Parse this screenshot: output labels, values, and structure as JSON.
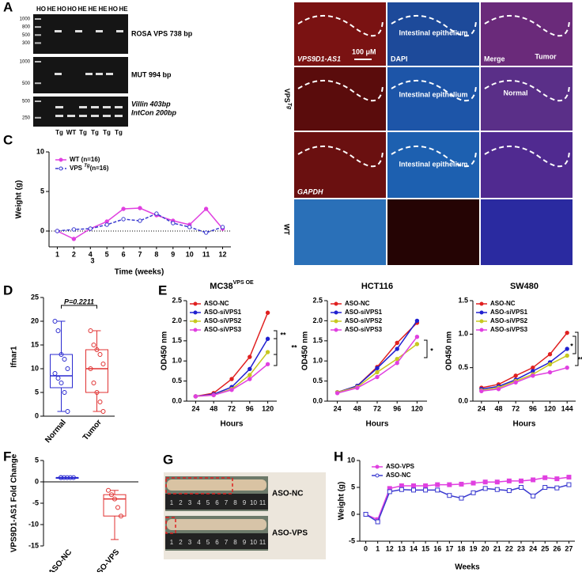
{
  "figure": {
    "A": {
      "label": "A",
      "lanes_top": [
        "HO",
        "HE",
        "HO",
        "HO",
        "HE",
        "HE",
        "HE",
        "HO",
        "HE"
      ],
      "gels": [
        {
          "ladder": [
            "1000",
            "800",
            "500",
            "300"
          ],
          "labels": [
            "ROSA VPS 738 bp"
          ]
        },
        {
          "ladder": [
            "1000",
            "500"
          ],
          "labels": [
            "MUT 994 bp"
          ]
        },
        {
          "ladder": [
            "500",
            "250"
          ],
          "labels": [
            "Villin 403bp",
            "IntCon 200bp"
          ]
        }
      ],
      "lanes_bottom": [
        "Tg",
        "WT",
        "Tg",
        "Tg",
        "Tg",
        "Tg"
      ]
    },
    "B": {
      "label": "B",
      "texts": [
        "VPS9D1-AS1",
        "100 μM",
        "DAPI",
        "Intestinal epithelium",
        "Merge",
        "Tumor",
        "Intestinal epithelium",
        "Normal",
        "GAPDH",
        "Intestinal epithelium"
      ],
      "row_group": "VPS",
      "row_group_sup": "Tg",
      "row_wt": "WT"
    },
    "G": {
      "label": "G",
      "rows": [
        "ASO-NC",
        "ASO-VPS"
      ],
      "ruler": [
        "1",
        "2",
        "3",
        "4",
        "5",
        "6",
        "7",
        "8",
        "9",
        "10",
        "11"
      ]
    }
  },
  "chart_data": [
    {
      "type": "line",
      "panel_label": "C",
      "xlabel": "Time (weeks)",
      "ylabel": "Weight (g)",
      "categories": [
        "1",
        "2",
        "4",
        "5",
        "6",
        "7",
        "8",
        "9",
        "10",
        "11",
        "12"
      ],
      "annotations": [
        "3"
      ],
      "ylim": [
        -2,
        10
      ],
      "yticks": [
        0,
        5,
        10
      ],
      "zero_line": true,
      "series": [
        {
          "name": "WT (n=16)",
          "color": "#e040e0",
          "marker": "circle",
          "values": [
            0,
            -1,
            0.3,
            1.2,
            2.8,
            2.9,
            2.0,
            1.3,
            0.8,
            2.8,
            0.3
          ]
        },
        {
          "name": "VPS ",
          "name_superscript": "Tg",
          "name_suffix": "(n=16)",
          "color": "#3a3ad0",
          "marker": "circle",
          "dash": true,
          "open": true,
          "values": [
            0,
            0.2,
            0.3,
            0.8,
            1.5,
            1.3,
            2.2,
            1.0,
            0.5,
            -0.2,
            0.5
          ]
        }
      ]
    },
    {
      "type": "box",
      "panel_label": "D",
      "ylabel": "Ifnar1",
      "categories": [
        "Normal",
        "Tumor"
      ],
      "colors": [
        "#2a2ad0",
        "#e03030"
      ],
      "ylim": [
        0,
        25
      ],
      "yticks": [
        0,
        5,
        10,
        15,
        20,
        25
      ],
      "annotations": [
        "P=0.2211"
      ],
      "boxes": [
        {
          "min": 1,
          "q1": 6,
          "median": 8.5,
          "q3": 13,
          "max": 20,
          "points": [
            20,
            18,
            13,
            12,
            10,
            9,
            8,
            7,
            5,
            1
          ]
        },
        {
          "min": 1,
          "q1": 5,
          "median": 10,
          "q3": 14,
          "max": 18,
          "points": [
            18,
            15,
            14,
            13,
            11,
            10,
            7,
            5,
            3,
            1
          ]
        }
      ]
    },
    {
      "type": "line",
      "panel_label": "E",
      "title": "MC38",
      "title_superscript": "VPS OE",
      "xlabel": "Hours",
      "ylabel": "OD450 nm",
      "categories": [
        "24",
        "48",
        "72",
        "96",
        "120"
      ],
      "ylim": [
        0,
        2.5
      ],
      "yticks": [
        {
          "value": 0,
          "label": "0.0"
        },
        0.5,
        {
          "value": 1,
          "label": "1.0"
        },
        1.5,
        {
          "value": 2,
          "label": "2.0"
        },
        2.5
      ],
      "annotations": [
        "**",
        "**"
      ],
      "series": [
        {
          "name": "ASO-NC",
          "color": "#e02020",
          "marker": "circle",
          "values": [
            0.12,
            0.2,
            0.55,
            1.1,
            2.2
          ]
        },
        {
          "name": "ASO-siVPS1",
          "color": "#2020d0",
          "marker": "circle",
          "values": [
            0.12,
            0.17,
            0.35,
            0.8,
            1.55
          ]
        },
        {
          "name": "ASO-siVPS2",
          "color": "#c8c820",
          "marker": "circle",
          "values": [
            0.12,
            0.15,
            0.3,
            0.65,
            1.22
          ]
        },
        {
          "name": "ASO-siVPS3",
          "color": "#e040e0",
          "marker": "circle",
          "values": [
            0.12,
            0.15,
            0.28,
            0.55,
            0.92
          ]
        }
      ]
    },
    {
      "type": "line",
      "title": "HCT116",
      "xlabel": "Hours",
      "ylabel": "OD450 nm",
      "categories": [
        "24",
        "48",
        "72",
        "96",
        "120"
      ],
      "ylim": [
        0,
        2.5
      ],
      "yticks": [
        {
          "value": 0,
          "label": "0.0"
        },
        0.5,
        {
          "value": 1,
          "label": "1.0"
        },
        1.5,
        {
          "value": 2,
          "label": "2.0"
        },
        2.5
      ],
      "annotations": [
        "*"
      ],
      "series": [
        {
          "name": "ASO-NC",
          "color": "#e02020",
          "marker": "circle",
          "values": [
            0.22,
            0.38,
            0.85,
            1.45,
            1.95
          ]
        },
        {
          "name": "ASO-siVPS1",
          "color": "#2020d0",
          "marker": "circle",
          "values": [
            0.22,
            0.38,
            0.82,
            1.3,
            2.0
          ]
        },
        {
          "name": "ASO-siVPS2",
          "color": "#c8c820",
          "marker": "circle",
          "values": [
            0.22,
            0.35,
            0.72,
            1.05,
            1.42
          ]
        },
        {
          "name": "ASO-siVPS3",
          "color": "#e040e0",
          "marker": "circle",
          "values": [
            0.2,
            0.33,
            0.6,
            0.95,
            1.6
          ]
        }
      ]
    },
    {
      "type": "line",
      "title": "SW480",
      "xlabel": "Hours",
      "ylabel": "OD450 nm",
      "categories": [
        "24",
        "48",
        "72",
        "96",
        "120",
        "144"
      ],
      "ylim": [
        0,
        1.5
      ],
      "yticks": [
        {
          "value": 0,
          "label": "0.0"
        },
        0.5,
        {
          "value": 1,
          "label": "1.0"
        },
        1.5
      ],
      "annotations": [
        "*",
        "**"
      ],
      "series": [
        {
          "name": "ASO-NC",
          "color": "#e02020",
          "marker": "circle",
          "values": [
            0.2,
            0.25,
            0.38,
            0.5,
            0.7,
            1.02
          ]
        },
        {
          "name": "ASO-siVPS1",
          "color": "#2020d0",
          "marker": "circle",
          "values": [
            0.18,
            0.22,
            0.32,
            0.45,
            0.58,
            0.78
          ]
        },
        {
          "name": "ASO-siVPS2",
          "color": "#c8c820",
          "marker": "circle",
          "values": [
            0.16,
            0.2,
            0.3,
            0.4,
            0.55,
            0.68
          ]
        },
        {
          "name": "ASO-siVPS3",
          "color": "#e040e0",
          "marker": "circle",
          "values": [
            0.15,
            0.18,
            0.28,
            0.38,
            0.43,
            0.5
          ]
        }
      ]
    },
    {
      "type": "box",
      "panel_label": "F",
      "ylabel": "VPS9D1-AS1 Fold Change",
      "categories": [
        "ASO-NC",
        "ASO-VPS"
      ],
      "colors": [
        "#2a2ad0",
        "#e03030"
      ],
      "ylim": [
        -15,
        5
      ],
      "yticks": [
        -15,
        -10,
        -5,
        0,
        5
      ],
      "zero_line": true,
      "boxes": [
        {
          "min": 1,
          "q1": 1,
          "median": 1,
          "q3": 1,
          "max": 1,
          "points": [
            1,
            1,
            1,
            1,
            1,
            1
          ]
        },
        {
          "min": -13.5,
          "q1": -8,
          "median": -4,
          "q3": -3,
          "max": -2,
          "points": [
            -2,
            -3,
            -4,
            -6,
            -8
          ]
        }
      ]
    },
    {
      "type": "line",
      "panel_label": "H",
      "xlabel": "Weeks",
      "ylabel": "Weight (g)",
      "categories": [
        "0",
        "1",
        "12",
        "13",
        "14",
        "15",
        "16",
        "17",
        "18",
        "19",
        "20",
        "21",
        "22",
        "23",
        "24",
        "25",
        "26",
        "27"
      ],
      "ylim": [
        -5,
        10
      ],
      "yticks": [
        -5,
        0,
        5,
        10
      ],
      "series": [
        {
          "name": "ASO-VPS",
          "color": "#e040e0",
          "marker": "square",
          "values": [
            0,
            -1,
            4.8,
            5.3,
            5.3,
            5.3,
            5.5,
            5.5,
            5.6,
            5.8,
            6,
            6,
            6.2,
            6.2,
            6.4,
            6.8,
            6.6,
            6.9
          ]
        },
        {
          "name": "ASO-NC",
          "color": "#3a3ad0",
          "marker": "square",
          "open": true,
          "values": [
            0,
            -1.4,
            4.2,
            4.6,
            4.5,
            4.5,
            4.5,
            3.5,
            3.0,
            4.0,
            4.8,
            4.6,
            4.4,
            5.0,
            3.4,
            5.0,
            4.9,
            5.5
          ]
        }
      ]
    }
  ]
}
